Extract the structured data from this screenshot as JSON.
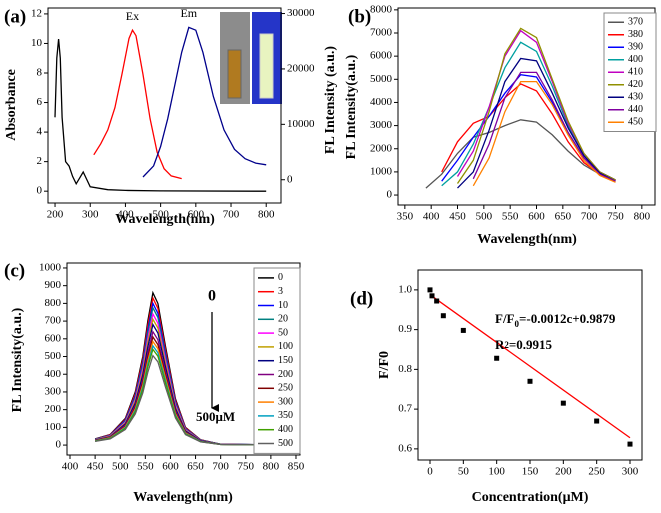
{
  "chart_data": [
    {
      "type": "line",
      "panel_label": "(a)",
      "xlabel": "Wavelength(nm)",
      "ylabel": "Absorbance",
      "y2label": "FL Intensity (a.u.)",
      "xlim": [
        180,
        842
      ],
      "xticks": [
        200,
        300,
        400,
        500,
        600,
        700,
        800
      ],
      "ylim": [
        -0.8,
        12.4
      ],
      "yticks": [
        0,
        2,
        4,
        6,
        8,
        10,
        12
      ],
      "y2lim": [
        -4200,
        31000
      ],
      "y2ticks": [
        0,
        10000,
        20000,
        30000
      ],
      "series": [
        {
          "color": "#000000",
          "x": [
            200,
            205,
            210,
            215,
            220,
            230,
            240,
            250,
            260,
            270,
            280,
            290,
            300,
            350,
            400,
            500,
            800
          ],
          "values": [
            5,
            9,
            10.3,
            9,
            5,
            2,
            1.7,
            1,
            0.5,
            0.9,
            1.3,
            0.8,
            0.3,
            0.1,
            0.05,
            0.02,
            0
          ]
        },
        {
          "name": "Ex",
          "axis": "y2",
          "color": "#ff0000",
          "x": [
            310,
            330,
            350,
            370,
            390,
            410,
            420,
            430,
            450,
            470,
            490,
            510,
            530,
            560
          ],
          "values": [
            4500,
            6500,
            9000,
            13000,
            19000,
            25500,
            27000,
            26000,
            19000,
            11000,
            5000,
            2000,
            700,
            200
          ]
        },
        {
          "name": "Em",
          "axis": "y2",
          "color": "#00008b",
          "x": [
            450,
            480,
            500,
            520,
            540,
            560,
            580,
            600,
            620,
            650,
            680,
            710,
            740,
            770,
            800
          ],
          "values": [
            500,
            2500,
            6000,
            11000,
            17000,
            23000,
            27500,
            27000,
            23000,
            15000,
            9000,
            5500,
            3800,
            3000,
            2700
          ]
        }
      ]
    },
    {
      "type": "line",
      "panel_label": "(b)",
      "xlabel": "Wavelength(nm)",
      "ylabel": "FL Intensity(a.u.)",
      "xlim": [
        337,
        825
      ],
      "xticks": [
        350,
        400,
        450,
        500,
        550,
        600,
        650,
        700,
        750,
        800
      ],
      "ylim": [
        -430,
        8080
      ],
      "yticks": [
        0,
        1000,
        2000,
        3000,
        4000,
        5000,
        6000,
        7000,
        8000
      ],
      "legend": "upper right",
      "x": [
        390,
        420,
        450,
        480,
        510,
        540,
        570,
        600,
        630,
        660,
        690,
        720,
        750
      ],
      "series": [
        {
          "name": "370",
          "color": "#555555",
          "values": [
            300,
            900,
            1800,
            2500,
            2700,
            3000,
            3250,
            3150,
            2600,
            1900,
            1300,
            900,
            600
          ]
        },
        {
          "name": "380",
          "color": "#ff0000",
          "values": [
            null,
            1000,
            2300,
            3100,
            3400,
            4200,
            4800,
            4500,
            3500,
            2300,
            1400,
            900,
            600
          ]
        },
        {
          "name": "390",
          "color": "#0000ff",
          "values": [
            null,
            600,
            1500,
            2500,
            3400,
            4400,
            5200,
            5100,
            4000,
            2700,
            1600,
            1000,
            650
          ]
        },
        {
          "name": "400",
          "color": "#00a0a0",
          "values": [
            null,
            400,
            1000,
            2200,
            3800,
            5500,
            6600,
            6200,
            4700,
            3000,
            1700,
            1000,
            650
          ]
        },
        {
          "name": "410",
          "color": "#c000c0",
          "values": [
            null,
            null,
            800,
            1900,
            3800,
            6000,
            7100,
            6600,
            4900,
            3100,
            1800,
            1000,
            650
          ]
        },
        {
          "name": "420",
          "color": "#909000",
          "values": [
            null,
            null,
            500,
            1500,
            3600,
            6100,
            7200,
            6800,
            5000,
            3200,
            1800,
            1000,
            650
          ]
        },
        {
          "name": "430",
          "color": "#000080",
          "values": [
            null,
            null,
            300,
            1000,
            2800,
            4900,
            5900,
            5800,
            4400,
            2900,
            1700,
            950,
            600
          ]
        },
        {
          "name": "440",
          "color": "#8000a0",
          "values": [
            null,
            null,
            null,
            700,
            2200,
            4200,
            5300,
            5300,
            4100,
            2700,
            1600,
            900,
            600
          ]
        },
        {
          "name": "450",
          "color": "#ff8000",
          "values": [
            null,
            null,
            null,
            400,
            1600,
            3600,
            4900,
            4900,
            3900,
            2600,
            1500,
            850,
            550
          ]
        }
      ]
    },
    {
      "type": "line",
      "panel_label": "(c)",
      "xlabel": "Wavelength(nm)",
      "ylabel": "FL Intensity(a.u.)",
      "xlim": [
        394,
        858
      ],
      "xticks": [
        400,
        450,
        500,
        550,
        600,
        650,
        700,
        750,
        800,
        850
      ],
      "ylim": [
        -56,
        1028
      ],
      "yticks": [
        0,
        100,
        200,
        300,
        400,
        500,
        600,
        700,
        800,
        900,
        1000
      ],
      "legend": "upper right",
      "annotations": [
        "0",
        "500μM"
      ],
      "x": [
        450,
        480,
        510,
        530,
        545,
        555,
        565,
        575,
        590,
        610,
        630,
        660,
        700,
        800
      ],
      "series": [
        {
          "name": "0",
          "color": "#000000",
          "values": [
            35,
            60,
            150,
            300,
            500,
            700,
            860,
            800,
            560,
            260,
            100,
            30,
            5,
            1
          ]
        },
        {
          "name": "3",
          "color": "#ff0000",
          "values": [
            34,
            58,
            145,
            290,
            483,
            676,
            830,
            772,
            540,
            251,
            97,
            29,
            5,
            1
          ]
        },
        {
          "name": "10",
          "color": "#0000ff",
          "values": [
            33,
            56,
            140,
            279,
            465,
            651,
            800,
            744,
            521,
            242,
            93,
            28,
            5,
            1
          ]
        },
        {
          "name": "20",
          "color": "#008080",
          "values": [
            32,
            54,
            135,
            270,
            451,
            631,
            775,
            721,
            505,
            234,
            90,
            27,
            5,
            1
          ]
        },
        {
          "name": "50",
          "color": "#ff00ff",
          "values": [
            30,
            52,
            129,
            258,
            430,
            602,
            740,
            688,
            482,
            224,
            86,
            26,
            4,
            1
          ]
        },
        {
          "name": "100",
          "color": "#c0a000",
          "values": [
            29,
            50,
            124,
            248,
            413,
            578,
            710,
            661,
            463,
            215,
            83,
            25,
            4,
            1
          ]
        },
        {
          "name": "150",
          "color": "#000080",
          "values": [
            28,
            47,
            119,
            237,
            395,
            553,
            680,
            633,
            443,
            206,
            79,
            24,
            4,
            1
          ]
        },
        {
          "name": "200",
          "color": "#800080",
          "values": [
            26,
            45,
            112,
            223,
            372,
            521,
            640,
            595,
            417,
            193,
            74,
            22,
            4,
            1
          ]
        },
        {
          "name": "250",
          "color": "#800000",
          "values": [
            25,
            43,
            106,
            213,
            355,
            496,
            610,
            567,
            397,
            184,
            71,
            21,
            4,
            1
          ]
        },
        {
          "name": "300",
          "color": "#ff8000",
          "values": [
            24,
            41,
            102,
            204,
            340,
            476,
            585,
            544,
            381,
            177,
            68,
            20,
            3,
            1
          ]
        },
        {
          "name": "350",
          "color": "#00a0c0",
          "values": [
            23,
            39,
            98,
            195,
            326,
            456,
            560,
            521,
            365,
            169,
            65,
            20,
            3,
            1
          ]
        },
        {
          "name": "400",
          "color": "#40a000",
          "values": [
            22,
            38,
            94,
            188,
            314,
            440,
            540,
            502,
            352,
            163,
            63,
            19,
            3,
            1
          ]
        },
        {
          "name": "500",
          "color": "#606060",
          "values": [
            21,
            35,
            88,
            176,
            294,
            411,
            505,
            470,
            329,
            153,
            59,
            18,
            3,
            1
          ]
        }
      ]
    },
    {
      "type": "scatter",
      "panel_label": "(d)",
      "xlabel": "Concentration(μM)",
      "ylabel": "F/F0",
      "xlim": [
        -18,
        318
      ],
      "xticks": [
        0,
        50,
        100,
        150,
        200,
        250,
        300
      ],
      "ylim": [
        0.572,
        1.05
      ],
      "yticks": [
        0.6,
        0.7,
        0.8,
        0.9,
        {
          "value": 1,
          "label": "1.0"
        }
      ],
      "color": "#000000",
      "x": [
        0,
        3,
        10,
        20,
        50,
        100,
        150,
        200,
        250,
        300
      ],
      "values": [
        1.0,
        0.985,
        0.972,
        0.935,
        0.898,
        0.828,
        0.77,
        0.715,
        0.67,
        0.612
      ],
      "fit": {
        "color": "#ff0000",
        "x": [
          0,
          300
        ],
        "y": [
          0.9879,
          0.6279
        ]
      },
      "equation": [
        "F/F",
        "0",
        "=-0.0012c+0.9879"
      ],
      "r2": [
        "R",
        "2",
        "=0.9915"
      ]
    }
  ]
}
